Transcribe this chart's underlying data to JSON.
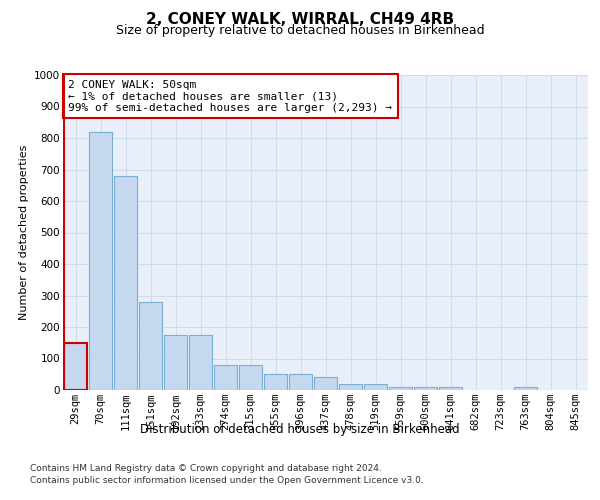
{
  "title1": "2, CONEY WALK, WIRRAL, CH49 4RB",
  "title2": "Size of property relative to detached houses in Birkenhead",
  "xlabel": "Distribution of detached houses by size in Birkenhead",
  "ylabel": "Number of detached properties",
  "categories": [
    "29sqm",
    "70sqm",
    "111sqm",
    "151sqm",
    "192sqm",
    "233sqm",
    "274sqm",
    "315sqm",
    "355sqm",
    "396sqm",
    "437sqm",
    "478sqm",
    "519sqm",
    "559sqm",
    "600sqm",
    "641sqm",
    "682sqm",
    "723sqm",
    "763sqm",
    "804sqm",
    "845sqm"
  ],
  "values": [
    150,
    820,
    680,
    280,
    175,
    175,
    80,
    80,
    50,
    50,
    40,
    20,
    20,
    10,
    10,
    10,
    0,
    0,
    10,
    0,
    0
  ],
  "bar_color": "#c5d8f0",
  "bar_edge_color": "#7aafd4",
  "highlight_bar_index": 0,
  "highlight_bar_edge_color": "#cc0000",
  "annotation_line1": "2 CONEY WALK: 50sqm",
  "annotation_line2": "← 1% of detached houses are smaller (13)",
  "annotation_line3": "99% of semi-detached houses are larger (2,293) →",
  "box_edge_color": "#cc0000",
  "ylim": [
    0,
    1000
  ],
  "yticks": [
    0,
    100,
    200,
    300,
    400,
    500,
    600,
    700,
    800,
    900,
    1000
  ],
  "grid_color": "#c8d8e8",
  "background_color": "#e8eff8",
  "footer1": "Contains HM Land Registry data © Crown copyright and database right 2024.",
  "footer2": "Contains public sector information licensed under the Open Government Licence v3.0.",
  "title1_fontsize": 11,
  "title2_fontsize": 9,
  "xlabel_fontsize": 8.5,
  "ylabel_fontsize": 8,
  "tick_fontsize": 7.5,
  "annotation_fontsize": 8
}
